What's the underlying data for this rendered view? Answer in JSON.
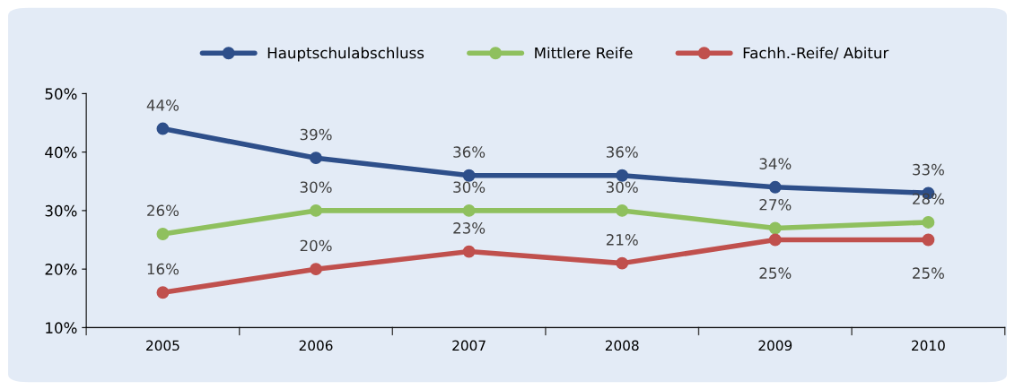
{
  "chart_data": {
    "type": "line",
    "categories": [
      "2005",
      "2006",
      "2007",
      "2008",
      "2009",
      "2010"
    ],
    "series": [
      {
        "name": "Hauptschulabschluss",
        "color": "#2e4f8a",
        "values": [
          44,
          39,
          36,
          36,
          34,
          33
        ],
        "value_labels": [
          "44%",
          "39%",
          "36%",
          "36%",
          "34%",
          "33%"
        ]
      },
      {
        "name": "Mittlere Reife",
        "color": "#8fc05e",
        "values": [
          26,
          30,
          30,
          30,
          27,
          28
        ],
        "value_labels": [
          "26%",
          "30%",
          "30%",
          "30%",
          "27%",
          "28%"
        ]
      },
      {
        "name": "Fachh.-Reife/ Abitur",
        "color": "#c0504d",
        "values": [
          16,
          20,
          23,
          21,
          25,
          25
        ],
        "value_labels": [
          "16%",
          "20%",
          "23%",
          "21%",
          "25%",
          "25%"
        ]
      }
    ],
    "ylim": [
      10,
      50
    ],
    "yticks": [
      {
        "value": 10,
        "label": "10%"
      },
      {
        "value": 20,
        "label": "20%"
      },
      {
        "value": 30,
        "label": "30%"
      },
      {
        "value": 40,
        "label": "40%"
      },
      {
        "value": 50,
        "label": "50%"
      }
    ],
    "legend": "top",
    "grid": false,
    "marker": "circle",
    "line_style": "solid"
  }
}
